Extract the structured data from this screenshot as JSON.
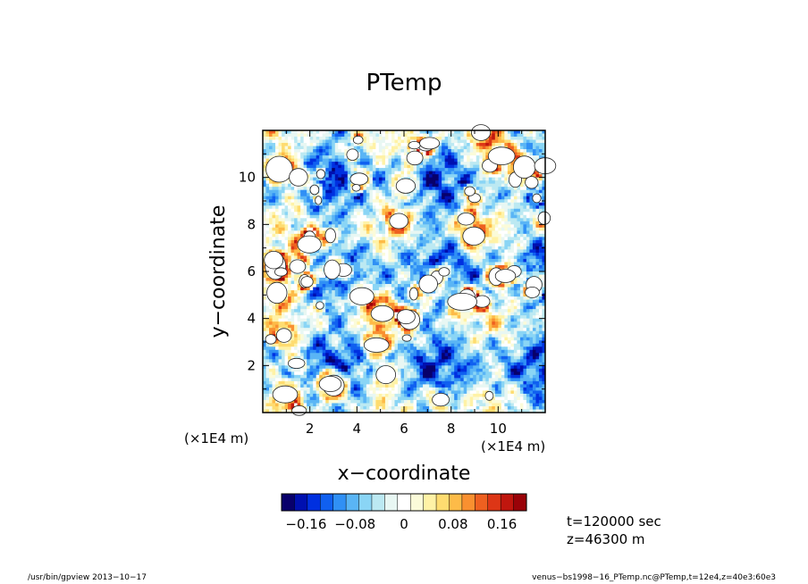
{
  "chart_data": {
    "type": "heatmap",
    "title": "PTemp",
    "xlabel": "x−coordinate",
    "ylabel": "y−coordinate",
    "x_units_label": "(×1E4 m)",
    "y_units_label": "(×1E4 m)",
    "xlim": [
      0,
      12
    ],
    "ylim": [
      0,
      12
    ],
    "x_ticks": [
      {
        "value": 2,
        "label": "2"
      },
      {
        "value": 4,
        "label": "4"
      },
      {
        "value": 6,
        "label": "6"
      },
      {
        "value": 8,
        "label": "8"
      },
      {
        "value": 10,
        "label": "10"
      }
    ],
    "y_ticks": [
      {
        "value": 2,
        "label": "2"
      },
      {
        "value": 4,
        "label": "4"
      },
      {
        "value": 6,
        "label": "6"
      },
      {
        "value": 8,
        "label": "8"
      },
      {
        "value": 10,
        "label": "10"
      }
    ],
    "colorbar": {
      "range": [
        -0.2,
        0.2
      ],
      "ticks": [
        {
          "value": -0.16,
          "label": "−0.16"
        },
        {
          "value": -0.08,
          "label": "−0.08"
        },
        {
          "value": 0,
          "label": "0"
        },
        {
          "value": 0.08,
          "label": "0.08"
        },
        {
          "value": 0.16,
          "label": "0.16"
        }
      ],
      "colors": [
        "#08006b",
        "#0010b0",
        "#0030e0",
        "#1060f0",
        "#3090f5",
        "#5ab5f5",
        "#8ad5f5",
        "#bce9f2",
        "#e8f7f3",
        "#ffffff",
        "#fbfbd9",
        "#fff2a6",
        "#fedc70",
        "#fdbb48",
        "#f99030",
        "#ee6020",
        "#dd3616",
        "#c0160e",
        "#9a0208"
      ]
    },
    "field_stats": {
      "background_value": -0.05,
      "white_patch_threshold": 0.2
    }
  },
  "annotations": {
    "time": "t=120000 sec",
    "z": "z=46300 m"
  },
  "footer": {
    "left": "/usr/bin/gpview   2013−10−17",
    "right": "venus−bs1998−16_PTemp.nc@PTemp,t=12e4,z=40e3:60e3"
  }
}
